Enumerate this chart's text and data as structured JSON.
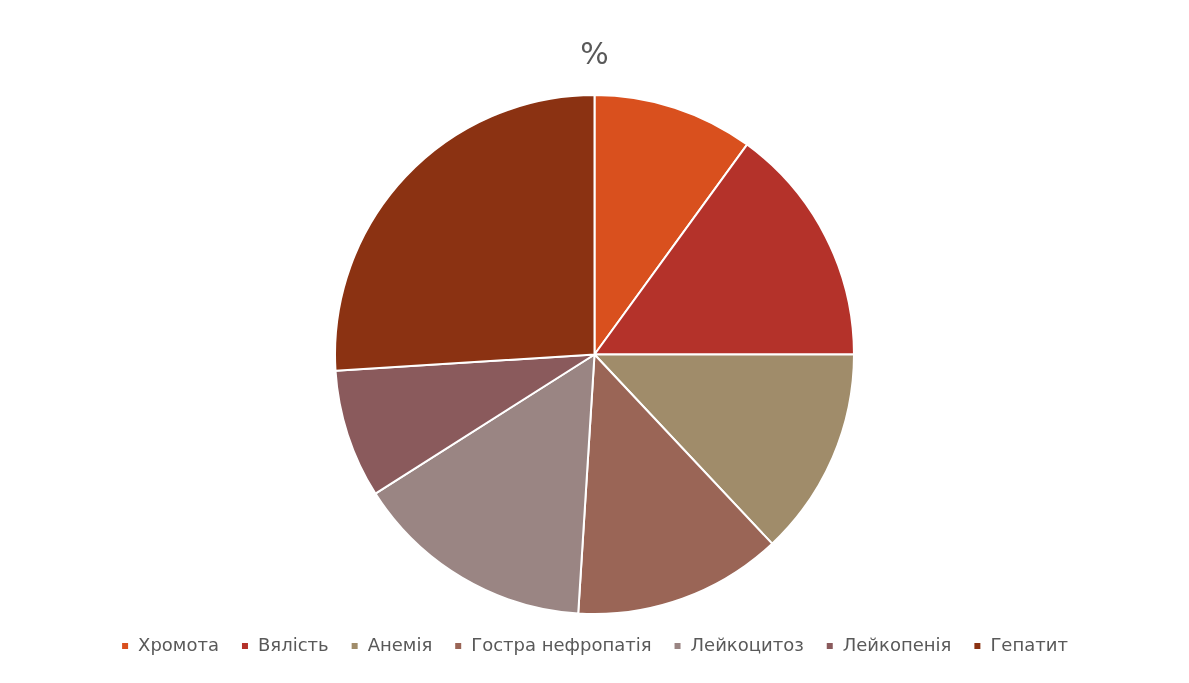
{
  "chart_data": {
    "type": "pie",
    "title": "%",
    "categories": [
      "Хромота",
      "Вялість",
      "Анемія",
      "Гостра нефропатія",
      "Лейкоцитоз",
      "Лейкопенія",
      "Гепатит"
    ],
    "values": [
      10,
      15,
      13,
      13,
      15,
      8,
      26
    ],
    "colors": [
      "#d9501e",
      "#b4322a",
      "#a08c6a",
      "#9a6556",
      "#9a8583",
      "#8a5a5c",
      "#8b3212"
    ],
    "legend": "bottom"
  }
}
